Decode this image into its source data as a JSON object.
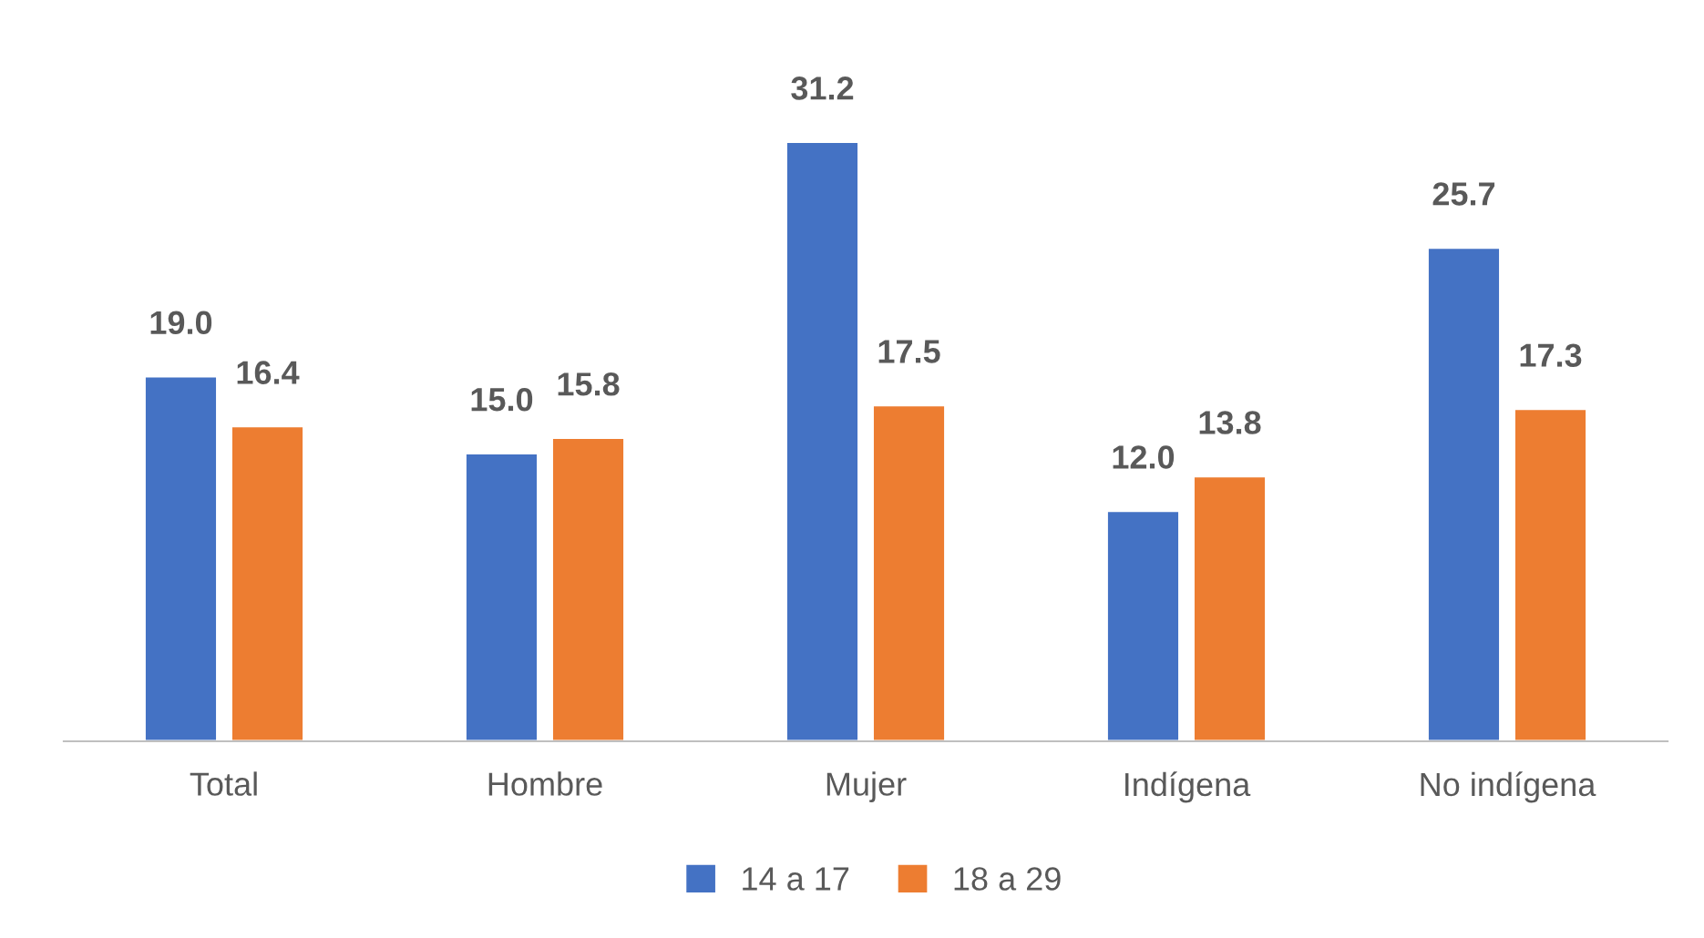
{
  "chart_data": {
    "type": "bar",
    "categories": [
      "Total",
      "Hombre",
      "Mujer",
      "Indígena",
      "No indígena"
    ],
    "series": [
      {
        "name": "14 a 17",
        "color": "#4472c4",
        "values": [
          19.0,
          15.0,
          31.2,
          12.0,
          25.7
        ],
        "value_labels": [
          "19.0",
          "15.0",
          "31.2",
          "12.0",
          "25.7"
        ]
      },
      {
        "name": "18 a 29",
        "color": "#ed7d31",
        "values": [
          16.4,
          15.8,
          17.5,
          13.8,
          17.3
        ],
        "value_labels": [
          "16.4",
          "15.8",
          "17.5",
          "13.8",
          "17.3"
        ]
      }
    ],
    "legend": "bottom",
    "grid": false,
    "tick_labels": "x"
  }
}
